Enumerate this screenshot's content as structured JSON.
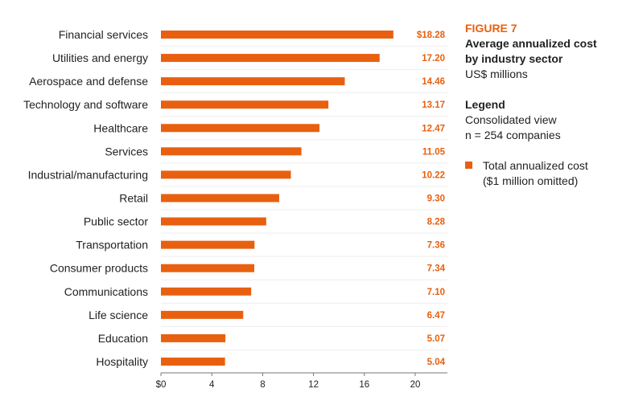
{
  "colors": {
    "bar": "#e8600f",
    "value_label": "#e8600f",
    "axis": "#777777",
    "grid": "#eeeeee"
  },
  "side_panel": {
    "figure_label": "FIGURE 7",
    "title_line1": "Average annualized cost",
    "title_line2": "by industry sector",
    "units": "US$ millions",
    "legend_heading": "Legend",
    "legend_line1": "Consolidated view",
    "legend_line2": "n = 254 companies",
    "legend_item_line1": "Total annualized cost",
    "legend_item_line2": "($1 million omitted)"
  },
  "chart_data": {
    "type": "bar",
    "orientation": "horizontal",
    "title": "Average annualized cost by industry sector",
    "xlabel": "",
    "ylabel": "",
    "xlim": [
      0,
      22
    ],
    "x_ticks": [
      "$0",
      "4",
      "8",
      "12",
      "16",
      "20"
    ],
    "x_tick_values": [
      0,
      4,
      8,
      12,
      16,
      20
    ],
    "grid": false,
    "legend": "right",
    "categories": [
      "Financial services",
      "Utilities and energy",
      "Aerospace and defense",
      "Technology and software",
      "Healthcare",
      "Services",
      "Industrial/manufacturing",
      "Retail",
      "Public sector",
      "Transportation",
      "Consumer products",
      "Communications",
      "Life science",
      "Education",
      "Hospitality"
    ],
    "values": [
      18.28,
      17.2,
      14.46,
      13.17,
      12.47,
      11.05,
      10.22,
      9.3,
      8.28,
      7.36,
      7.34,
      7.1,
      6.47,
      5.07,
      5.04
    ],
    "value_labels": [
      "$18.28",
      "17.20",
      "14.46",
      "13.17",
      "12.47",
      "11.05",
      "10.22",
      "9.30",
      "8.28",
      "7.36",
      "7.34",
      "7.10",
      "6.47",
      "5.07",
      "5.04"
    ]
  }
}
